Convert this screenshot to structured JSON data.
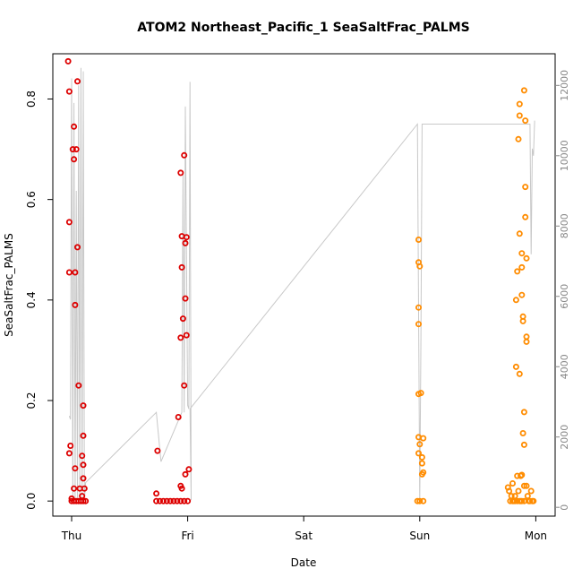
{
  "chart_data": {
    "type": "scatter",
    "title": "ATOM2 Northeast_Pacific_1 SeaSaltFrac_PALMS",
    "xlabel": "Date",
    "ylabel": "SeaSaltFrac_PALMS",
    "x_axis": {
      "scale": "date",
      "ticks": [
        "Thu",
        "Fri",
        "Sat",
        "Sun",
        "Mon"
      ],
      "range": [
        "Thu 00:00",
        "Mon 03:00"
      ]
    },
    "y_left": {
      "ticks": [
        "0.0",
        "0.2",
        "0.4",
        "0.6",
        "0.8"
      ],
      "lim": [
        -0.03,
        0.89
      ]
    },
    "y_right": {
      "ticks": [
        "0",
        "2000",
        "4000",
        "6000",
        "8000",
        "10000",
        "12000"
      ],
      "lim": [
        -250,
        12900
      ],
      "note": "altitude trace (gray line)"
    },
    "grid": false,
    "legend": "none",
    "colors": {
      "day1": "#dd0000",
      "day2": "#ff8c00",
      "altitude": "#c8c8c8",
      "frame": "#000000"
    },
    "series": [
      {
        "color": "#dd0000",
        "points": [
          [
            -0.03,
            0.875
          ],
          [
            -0.02,
            0.815
          ],
          [
            -0.02,
            0.555
          ],
          [
            -0.02,
            0.455
          ],
          [
            -0.01,
            0.11
          ],
          [
            -0.02,
            0.095
          ],
          [
            0.0,
            0.005
          ],
          [
            0.02,
            0.745
          ],
          [
            0.01,
            0.7
          ],
          [
            0.02,
            0.68
          ],
          [
            0.03,
            0.455
          ],
          [
            0.03,
            0.39
          ],
          [
            0.05,
            0.835
          ],
          [
            0.04,
            0.7
          ],
          [
            0.05,
            0.505
          ],
          [
            0.06,
            0.23
          ],
          [
            0.02,
            0.025
          ],
          [
            0.03,
            0.065
          ],
          [
            0.07,
            0.025
          ],
          [
            0.1,
            0.19
          ],
          [
            0.1,
            0.13
          ],
          [
            0.09,
            0.09
          ],
          [
            0.1,
            0.072
          ],
          [
            0.1,
            0.045
          ],
          [
            0.11,
            0.025
          ],
          [
            0.09,
            0.01
          ],
          [
            0.0,
            0.0
          ],
          [
            0.02,
            0.0
          ],
          [
            0.04,
            0.0
          ],
          [
            0.06,
            0.0
          ],
          [
            0.08,
            0.0
          ],
          [
            0.1,
            0.0
          ],
          [
            0.12,
            0.0
          ],
          [
            0.74,
            0.1
          ],
          [
            0.73,
            0.015
          ],
          [
            0.73,
            0.0
          ],
          [
            0.76,
            0.0
          ],
          [
            0.79,
            0.0
          ],
          [
            0.82,
            0.0
          ],
          [
            0.85,
            0.0
          ],
          [
            0.88,
            0.0
          ],
          [
            0.91,
            0.0
          ],
          [
            0.94,
            0.0
          ],
          [
            0.97,
            0.0
          ],
          [
            1.0,
            0.0
          ],
          [
            0.92,
            0.167
          ],
          [
            0.94,
            0.653
          ],
          [
            0.95,
            0.527
          ],
          [
            0.95,
            0.465
          ],
          [
            0.96,
            0.363
          ],
          [
            0.94,
            0.325
          ],
          [
            0.97,
            0.688
          ],
          [
            0.99,
            0.525
          ],
          [
            0.98,
            0.513
          ],
          [
            0.98,
            0.403
          ],
          [
            0.99,
            0.33
          ],
          [
            0.97,
            0.23
          ],
          [
            0.94,
            0.03
          ],
          [
            0.95,
            0.025
          ],
          [
            0.98,
            0.053
          ],
          [
            1.01,
            0.063
          ]
        ]
      },
      {
        "color": "#ff8c00",
        "points": [
          [
            2.99,
            0.52
          ],
          [
            2.99,
            0.475
          ],
          [
            3.0,
            0.467
          ],
          [
            2.99,
            0.385
          ],
          [
            2.99,
            0.352
          ],
          [
            3.01,
            0.215
          ],
          [
            2.99,
            0.213
          ],
          [
            2.99,
            0.127
          ],
          [
            3.03,
            0.125
          ],
          [
            3.0,
            0.113
          ],
          [
            2.99,
            0.095
          ],
          [
            3.02,
            0.087
          ],
          [
            3.02,
            0.075
          ],
          [
            3.03,
            0.057
          ],
          [
            3.02,
            0.053
          ],
          [
            2.98,
            0.0
          ],
          [
            3.0,
            0.0
          ],
          [
            3.03,
            0.0
          ],
          [
            3.76,
            0.027
          ],
          [
            3.77,
            0.02
          ],
          [
            3.78,
            0.0
          ],
          [
            3.79,
            0.01
          ],
          [
            3.8,
            0.035
          ],
          [
            3.81,
            0.0
          ],
          [
            3.82,
            0.01
          ],
          [
            3.83,
            0.4
          ],
          [
            3.83,
            0.267
          ],
          [
            3.84,
            0.457
          ],
          [
            3.84,
            0.05
          ],
          [
            3.85,
            0.02
          ],
          [
            3.85,
            0.72
          ],
          [
            3.86,
            0.532
          ],
          [
            3.86,
            0.253
          ],
          [
            3.86,
            0.79
          ],
          [
            3.86,
            0.767
          ],
          [
            3.87,
            0.05
          ],
          [
            3.87,
            0.0
          ],
          [
            3.88,
            0.052
          ],
          [
            3.88,
            0.493
          ],
          [
            3.88,
            0.465
          ],
          [
            3.88,
            0.41
          ],
          [
            3.89,
            0.367
          ],
          [
            3.89,
            0.358
          ],
          [
            3.89,
            0.135
          ],
          [
            3.9,
            0.03
          ],
          [
            3.9,
            0.0
          ],
          [
            3.9,
            0.817
          ],
          [
            3.91,
            0.757
          ],
          [
            3.91,
            0.625
          ],
          [
            3.91,
            0.565
          ],
          [
            3.92,
            0.483
          ],
          [
            3.92,
            0.327
          ],
          [
            3.92,
            0.317
          ],
          [
            3.9,
            0.177
          ],
          [
            3.9,
            0.112
          ],
          [
            3.92,
            0.03
          ],
          [
            3.93,
            0.01
          ],
          [
            3.94,
            0.0
          ],
          [
            3.95,
            0.0
          ],
          [
            3.96,
            0.02
          ],
          [
            3.97,
            0.0
          ],
          [
            3.98,
            0.0
          ],
          [
            3.8,
            0.0
          ],
          [
            3.82,
            0.0
          ],
          [
            3.84,
            0.0
          ],
          [
            3.86,
            0.0
          ],
          [
            3.88,
            0.0
          ]
        ]
      }
    ],
    "altitude_trace": [
      [
        -0.02,
        2600
      ],
      [
        -0.01,
        2500
      ],
      [
        0.0,
        12200
      ],
      [
        0.01,
        200
      ],
      [
        0.02,
        11500
      ],
      [
        0.03,
        200
      ],
      [
        0.04,
        9000
      ],
      [
        0.05,
        200
      ],
      [
        0.06,
        12000
      ],
      [
        0.07,
        200
      ],
      [
        0.08,
        12500
      ],
      [
        0.09,
        200
      ],
      [
        0.1,
        12400
      ],
      [
        0.11,
        200
      ],
      [
        0.12,
        700
      ],
      [
        0.73,
        2700
      ],
      [
        0.77,
        1300
      ],
      [
        0.95,
        2700
      ],
      [
        0.96,
        9500
      ],
      [
        0.97,
        2700
      ],
      [
        0.98,
        11400
      ],
      [
        1.0,
        2900
      ],
      [
        1.01,
        2800
      ],
      [
        1.02,
        12100
      ],
      [
        1.03,
        200
      ],
      [
        1.02,
        2800
      ],
      [
        2.98,
        10900
      ],
      [
        3.0,
        200
      ],
      [
        3.01,
        4800
      ],
      [
        3.02,
        10900
      ],
      [
        3.95,
        10900
      ],
      [
        3.96,
        7200
      ],
      [
        3.97,
        10200
      ],
      [
        3.98,
        10000
      ],
      [
        3.99,
        11000
      ]
    ]
  }
}
